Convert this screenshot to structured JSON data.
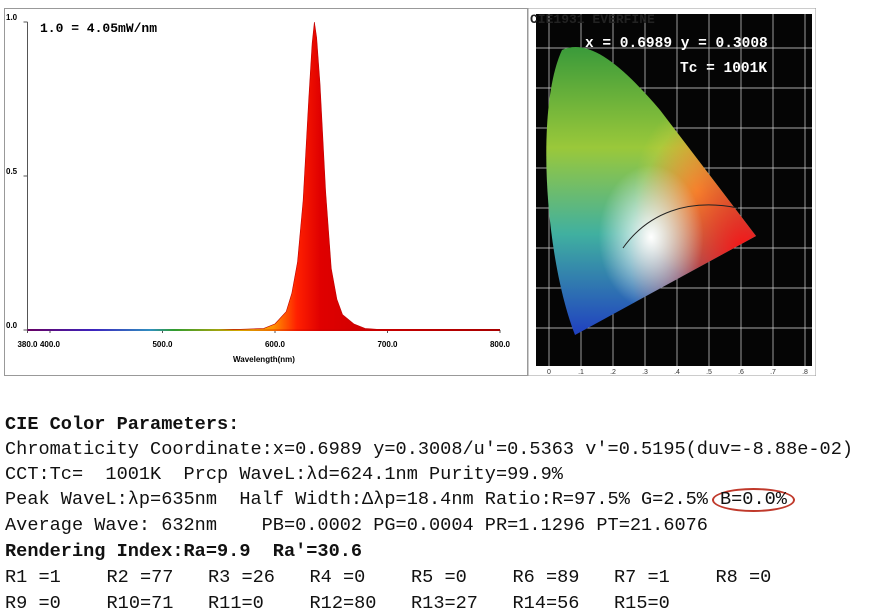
{
  "chart_data": {
    "type": "area",
    "annotation": "1.0 = 4.05mW/nm",
    "x_label": "Wavelength(nm)",
    "x": [
      380,
      550,
      590,
      600,
      610,
      615,
      620,
      625,
      630,
      633,
      635,
      637,
      640,
      645,
      650,
      655,
      660,
      670,
      680,
      700,
      800
    ],
    "values": [
      0,
      0,
      0.005,
      0.02,
      0.06,
      0.12,
      0.22,
      0.42,
      0.75,
      0.93,
      1.0,
      0.95,
      0.8,
      0.45,
      0.2,
      0.1,
      0.05,
      0.02,
      0.005,
      0,
      0
    ],
    "xlim": [
      380,
      800
    ],
    "ylim": [
      0,
      1
    ],
    "xticks": [
      {
        "value": 380,
        "label": "380.0"
      },
      {
        "value": 400,
        "label": "400.0"
      },
      {
        "value": 500,
        "label": "500.0"
      },
      {
        "value": 600,
        "label": "600.0"
      },
      {
        "value": 700,
        "label": "700.0"
      },
      {
        "value": 800,
        "label": "800.0"
      }
    ],
    "yticks": [
      {
        "value": 0,
        "label": "0.0"
      },
      {
        "value": 0.5,
        "label": "0.5"
      },
      {
        "value": 1,
        "label": "1.0"
      }
    ]
  },
  "cie_diagram": {
    "title": "CIE1931 EVERFINE",
    "coordinates": "x = 0.6989 y = 0.3008",
    "cct": "Tc = 1001K",
    "xticks": [
      "0",
      ".1",
      ".2",
      ".3",
      ".4",
      ".5",
      ".6",
      ".7",
      ".8"
    ]
  },
  "parameters": {
    "title": "CIE Color Parameters:",
    "lines": [
      "Chromaticity Coordinate:x=0.6989 y=0.3008/u'=0.5363 v'=0.5195(duv=-8.88e-02)",
      "CCT:Tc=  1001K  Prcp WaveL:λd=624.1nm Purity=99.9%",
      "Peak WaveL:λp=635nm  Half Width:Δλp=18.4nm Ratio:R=97.5% G=2.5%",
      "Average Wave: 632nm    PB=0.0002 PG=0.0004 PR=1.1296 PT=21.6076",
      "Rendering Index:Ra=9.9  Ra'=30.6"
    ],
    "highlight": "B=0.0%",
    "rendering_index": [
      [
        "R1 =1",
        "R2 =77",
        "R3 =26",
        "R4 =0",
        "R5 =0",
        "R6 =89",
        "R7 =1",
        "R8 =0"
      ],
      [
        "R9 =0",
        "R10=71",
        "R11=0",
        "R12=80",
        "R13=27",
        "R14=56",
        "R15=0"
      ]
    ]
  }
}
